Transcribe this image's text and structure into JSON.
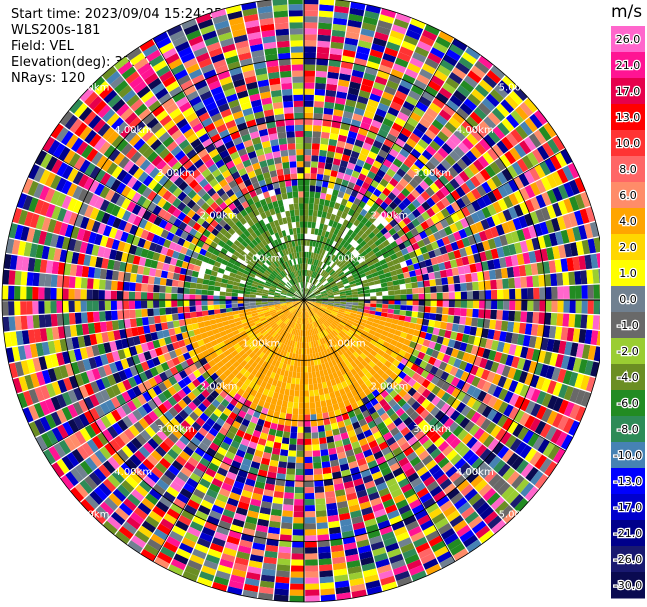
{
  "header": {
    "start_time": "Start time: 2023/09/04 15:24:25",
    "site": "WLS200s-181",
    "field": "Field: VEL",
    "elevation": "Elevation(deg): 35.30",
    "nrays": "NRays: 120"
  },
  "colorbar": {
    "unit": "m/s",
    "ticks": [
      "26.0",
      "21.0",
      "17.0",
      "13.0",
      "10.0",
      "8.0",
      "6.0",
      "4.0",
      "2.0",
      "1.0",
      "0.0",
      "-1.0",
      "-2.0",
      "-4.0",
      "-6.0",
      "-8.0",
      "-10.0",
      "-13.0",
      "-17.0",
      "-21.0",
      "-26.0",
      "-30.0"
    ],
    "colors": [
      "#ff66cc",
      "#ff1493",
      "#e6004c",
      "#ff0000",
      "#ff3333",
      "#ff6666",
      "#ff8c69",
      "#ffa500",
      "#ffd700",
      "#ffff00",
      "#708090",
      "#696969",
      "#9acd32",
      "#6b8e23",
      "#228b22",
      "#2e8b57",
      "#4682b4",
      "#0000ff",
      "#0000cd",
      "#00008b",
      "#191970",
      "#0a0a50"
    ]
  },
  "chart_data": {
    "type": "heatmap",
    "title": "",
    "field": "VEL",
    "unit": "m/s",
    "elevation_deg": 35.3,
    "nrays": 120,
    "range_rings_km": [
      1.0,
      2.0,
      3.0,
      4.0,
      5.0
    ],
    "range_labels": [
      "1.00km",
      "2.00km",
      "3.00km",
      "4.00km",
      "5.00km"
    ],
    "max_range_km": 5.0,
    "value_range": [
      -30.0,
      30.0
    ],
    "near_field_pattern": [
      {
        "sector": "north",
        "range_km": [
          0.0,
          1.6
        ],
        "velocity_ms": -3.0
      },
      {
        "sector": "east-west centre",
        "range_km": [
          0.0,
          1.0
        ],
        "velocity_ms": 0.0
      },
      {
        "sector": "south",
        "range_km": [
          0.0,
          1.8
        ],
        "velocity_ms": 4.0
      }
    ],
    "far_field": "noise (random velocities)"
  }
}
